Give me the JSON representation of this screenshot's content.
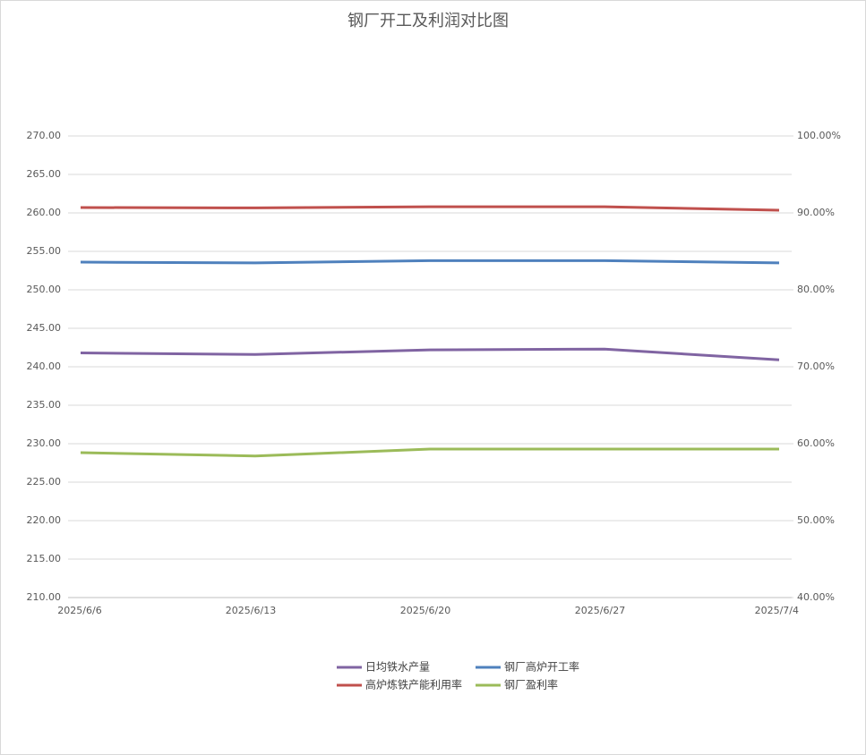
{
  "chart_data": {
    "type": "line",
    "title": "钢厂开工及利润对比图",
    "categories": [
      "2025/6/6",
      "2025/6/13",
      "2025/6/20",
      "2025/6/27",
      "2025/7/4"
    ],
    "series": [
      {
        "name": "日均铁水产量",
        "color": "#8064a2",
        "values": [
          241.8,
          241.6,
          242.2,
          242.3,
          240.9
        ]
      },
      {
        "name": "钢厂高炉开工率",
        "color": "#4f81bd",
        "axis": "y2",
        "values": [
          83.6,
          83.5,
          83.8,
          83.8,
          83.5
        ]
      },
      {
        "name": "高炉炼铁产能利用率",
        "color": "#c0504d",
        "axis": "y2",
        "values": [
          90.7,
          90.65,
          90.8,
          90.8,
          90.35
        ]
      },
      {
        "name": "钢厂盈利率",
        "color": "#9bbb59",
        "axis": "y2",
        "values": [
          58.84,
          58.4,
          59.3,
          59.3,
          59.3
        ]
      }
    ],
    "ylim": [
      210,
      270
    ],
    "yticks": [
      {
        "value": 210,
        "label": "210.00"
      },
      {
        "value": 215,
        "label": "215.00"
      },
      {
        "value": 220,
        "label": "220.00"
      },
      {
        "value": 225,
        "label": "225.00"
      },
      {
        "value": 230,
        "label": "230.00"
      },
      {
        "value": 235,
        "label": "235.00"
      },
      {
        "value": 240,
        "label": "240.00"
      },
      {
        "value": 245,
        "label": "245.00"
      },
      {
        "value": 250,
        "label": "250.00"
      },
      {
        "value": 255,
        "label": "255.00"
      },
      {
        "value": 260,
        "label": "260.00"
      },
      {
        "value": 265,
        "label": "265.00"
      },
      {
        "value": 270,
        "label": "270.00"
      }
    ],
    "y2lim": [
      40,
      100
    ],
    "y2ticks": [
      {
        "value": 40,
        "label": "40.00%"
      },
      {
        "value": 50,
        "label": "50.00%"
      },
      {
        "value": 60,
        "label": "60.00%"
      },
      {
        "value": 70,
        "label": "70.00%"
      },
      {
        "value": 80,
        "label": "80.00%"
      },
      {
        "value": 90,
        "label": "90.00%"
      },
      {
        "value": 100,
        "label": "100.00%"
      }
    ],
    "grid": true
  }
}
